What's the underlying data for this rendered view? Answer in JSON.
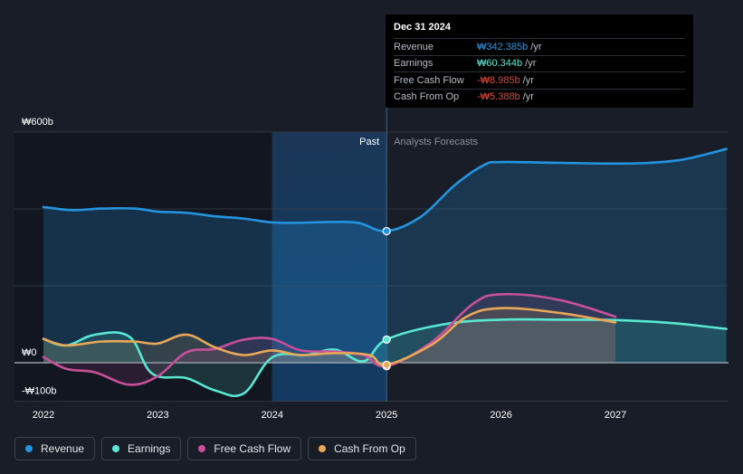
{
  "chart_data": {
    "type": "line",
    "currency_symbol": "₩",
    "y_axis": {
      "min": -100,
      "max": 600,
      "ticks": [
        {
          "value": 600,
          "label": "₩600b"
        },
        {
          "value": 0,
          "label": "₩0"
        },
        {
          "value": -100,
          "label": "-₩100b"
        }
      ],
      "gridlines": [
        400,
        200
      ]
    },
    "x_axis": {
      "min": 2021.9,
      "max": 2027.97,
      "ticks": [
        {
          "value": 2022,
          "label": "2022"
        },
        {
          "value": 2023,
          "label": "2023"
        },
        {
          "value": 2024,
          "label": "2024"
        },
        {
          "value": 2025,
          "label": "2025"
        },
        {
          "value": 2026,
          "label": "2026"
        },
        {
          "value": 2027,
          "label": "2027"
        }
      ]
    },
    "divider_x": 2025,
    "highlight_start_x": 2024,
    "past_label": "Past",
    "forecast_label": "Analysts Forecasts",
    "series": [
      {
        "name": "Revenue",
        "color": "#2394df",
        "values": [
          [
            2022,
            405
          ],
          [
            2022.25,
            397
          ],
          [
            2022.5,
            401
          ],
          [
            2022.8,
            401
          ],
          [
            2023,
            393
          ],
          [
            2023.25,
            390
          ],
          [
            2023.5,
            381
          ],
          [
            2023.75,
            375
          ],
          [
            2024,
            365
          ],
          [
            2024.25,
            364
          ],
          [
            2024.5,
            366
          ],
          [
            2024.75,
            364
          ],
          [
            2025,
            342.385
          ]
        ],
        "forecast": [
          [
            2025,
            342.385
          ],
          [
            2025.3,
            380
          ],
          [
            2025.6,
            463
          ],
          [
            2025.85,
            514
          ],
          [
            2026,
            522
          ],
          [
            2026.5,
            520
          ],
          [
            2027,
            518
          ],
          [
            2027.3,
            520
          ],
          [
            2027.6,
            529
          ],
          [
            2027.97,
            556
          ]
        ]
      },
      {
        "name": "Earnings",
        "color": "#58e8d2",
        "values": [
          [
            2022,
            62
          ],
          [
            2022.2,
            45
          ],
          [
            2022.45,
            73
          ],
          [
            2022.75,
            68
          ],
          [
            2022.95,
            -28
          ],
          [
            2023.25,
            -40
          ],
          [
            2023.5,
            -72
          ],
          [
            2023.75,
            -80
          ],
          [
            2024,
            14
          ],
          [
            2024.3,
            20
          ],
          [
            2024.55,
            34
          ],
          [
            2024.8,
            4
          ],
          [
            2025,
            60.344
          ]
        ],
        "forecast": [
          [
            2025,
            60.344
          ],
          [
            2025.5,
            100
          ],
          [
            2026,
            112
          ],
          [
            2026.5,
            112
          ],
          [
            2027,
            111
          ],
          [
            2027.5,
            103
          ],
          [
            2027.97,
            88
          ]
        ]
      },
      {
        "name": "Free Cash Flow",
        "color": "#c8509a",
        "values": [
          [
            2022,
            15
          ],
          [
            2022.2,
            -16
          ],
          [
            2022.45,
            -25
          ],
          [
            2022.75,
            -57
          ],
          [
            2023,
            -35
          ],
          [
            2023.25,
            27
          ],
          [
            2023.5,
            36
          ],
          [
            2023.75,
            60
          ],
          [
            2024,
            62
          ],
          [
            2024.25,
            32
          ],
          [
            2024.55,
            29
          ],
          [
            2024.8,
            20
          ],
          [
            2025,
            -8.985
          ]
        ],
        "forecast": [
          [
            2025,
            -8.985
          ],
          [
            2025.4,
            55
          ],
          [
            2025.75,
            152
          ],
          [
            2026,
            178
          ],
          [
            2026.5,
            164
          ],
          [
            2027,
            120
          ]
        ]
      },
      {
        "name": "Cash From Op",
        "color": "#e8a857",
        "values": [
          [
            2022,
            62
          ],
          [
            2022.2,
            45
          ],
          [
            2022.5,
            55
          ],
          [
            2022.8,
            55
          ],
          [
            2023,
            50
          ],
          [
            2023.25,
            73
          ],
          [
            2023.5,
            40
          ],
          [
            2023.75,
            20
          ],
          [
            2024,
            32
          ],
          [
            2024.25,
            20
          ],
          [
            2024.55,
            25
          ],
          [
            2024.85,
            20
          ],
          [
            2025,
            -5.388
          ]
        ],
        "forecast": [
          [
            2025,
            -5.388
          ],
          [
            2025.4,
            48
          ],
          [
            2025.7,
            120
          ],
          [
            2026,
            142
          ],
          [
            2026.5,
            130
          ],
          [
            2027,
            105
          ]
        ]
      }
    ]
  },
  "tooltip": {
    "date": "Dec 31 2024",
    "unit": "/yr",
    "rows": [
      {
        "name": "Revenue",
        "value": "₩342.385b",
        "color": "#2394df"
      },
      {
        "name": "Earnings",
        "value": "₩60.344b",
        "color": "#58e8d2"
      },
      {
        "name": "Free Cash Flow",
        "value": "-₩8.985b",
        "color": "#e0453c"
      },
      {
        "name": "Cash From Op",
        "value": "-₩5.388b",
        "color": "#e0453c"
      }
    ]
  },
  "legend": [
    {
      "label": "Revenue",
      "color": "#2394df"
    },
    {
      "label": "Earnings",
      "color": "#58e8d2"
    },
    {
      "label": "Free Cash Flow",
      "color": "#c8509a"
    },
    {
      "label": "Cash From Op",
      "color": "#e8a857"
    }
  ]
}
